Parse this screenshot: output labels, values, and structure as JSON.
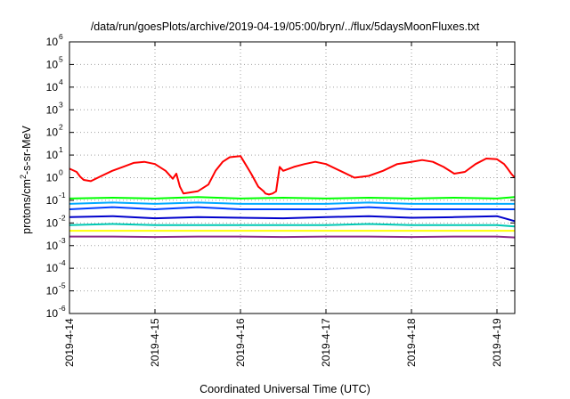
{
  "chart_data": {
    "type": "line",
    "title": "/data/run/goesPlots/archive/2019-04-19/05:00/bryn/../flux/5daysMoonFluxes.txt",
    "xlabel": "Coordinated Universal Time (UTC)",
    "ylabel": {
      "pre": "protons/cm",
      "sup": "2",
      "post": "-s-sr-MeV"
    },
    "yscale": "log",
    "ylim": [
      1e-06,
      1000000.0
    ],
    "y_ticks": [
      {
        "base": "10",
        "exp": "-6"
      },
      {
        "base": "10",
        "exp": "-5"
      },
      {
        "base": "10",
        "exp": "-4"
      },
      {
        "base": "10",
        "exp": "-3"
      },
      {
        "base": "10",
        "exp": "-2"
      },
      {
        "base": "10",
        "exp": "-1"
      },
      {
        "base": "10",
        "exp": "0"
      },
      {
        "base": "10",
        "exp": "1"
      },
      {
        "base": "10",
        "exp": "2"
      },
      {
        "base": "10",
        "exp": "3"
      },
      {
        "base": "10",
        "exp": "4"
      },
      {
        "base": "10",
        "exp": "5"
      },
      {
        "base": "10",
        "exp": "6"
      }
    ],
    "x_ticks": [
      "2019-4-14",
      "2019-4-15",
      "2019-4-16",
      "2019-4-17",
      "2019-4-18",
      "2019-4-19"
    ],
    "xlim": [
      "2019-04-14T00:00",
      "2019-04-19T05:00"
    ],
    "grid": true,
    "legend": "none",
    "series": [
      {
        "color": "#ff0000",
        "x": [
          "2019-04-14T00:00",
          "2019-04-14T02:00",
          "2019-04-14T03:00",
          "2019-04-14T04:00",
          "2019-04-14T06:00",
          "2019-04-14T09:00",
          "2019-04-14T12:00",
          "2019-04-14T15:00",
          "2019-04-14T18:00",
          "2019-04-14T21:00",
          "2019-04-15T00:00",
          "2019-04-15T03:00",
          "2019-04-15T05:00",
          "2019-04-15T06:00",
          "2019-04-15T07:00",
          "2019-04-15T08:00",
          "2019-04-15T12:00",
          "2019-04-15T15:00",
          "2019-04-15T17:00",
          "2019-04-15T19:00",
          "2019-04-15T21:00",
          "2019-04-16T00:00",
          "2019-04-16T01:00",
          "2019-04-16T03:00",
          "2019-04-16T05:00",
          "2019-04-16T06:30",
          "2019-04-16T07:00",
          "2019-04-16T08:00",
          "2019-04-16T09:00",
          "2019-04-16T10:00",
          "2019-04-16T11:00",
          "2019-04-16T12:00",
          "2019-04-16T15:00",
          "2019-04-16T18:00",
          "2019-04-16T21:00",
          "2019-04-17T00:00",
          "2019-04-17T04:00",
          "2019-04-17T08:00",
          "2019-04-17T12:00",
          "2019-04-17T16:00",
          "2019-04-17T20:00",
          "2019-04-18T00:00",
          "2019-04-18T03:00",
          "2019-04-18T06:00",
          "2019-04-18T09:00",
          "2019-04-18T12:00",
          "2019-04-18T15:00",
          "2019-04-18T18:00",
          "2019-04-18T21:00",
          "2019-04-19T00:00",
          "2019-04-19T02:00",
          "2019-04-19T03:00",
          "2019-04-19T04:00",
          "2019-04-19T05:00"
        ],
        "values": [
          2.5,
          1.8,
          1.1,
          0.8,
          0.7,
          1.2,
          2.0,
          3.0,
          4.5,
          5.0,
          4.0,
          2.0,
          0.9,
          1.5,
          0.4,
          0.2,
          0.25,
          0.5,
          2.0,
          5.0,
          8.0,
          9.0,
          5.0,
          1.5,
          0.4,
          0.25,
          0.2,
          0.18,
          0.2,
          0.25,
          3.0,
          2.0,
          3.0,
          4.0,
          5.0,
          4.0,
          2.0,
          1.0,
          1.2,
          2.0,
          4.0,
          5.0,
          6.0,
          5.0,
          3.0,
          1.5,
          1.8,
          4.0,
          7.0,
          6.5,
          4.0,
          2.5,
          1.5,
          1.0
        ]
      },
      {
        "color": "#00ff00",
        "x": [
          "2019-04-14T00:00",
          "2019-04-14T12:00",
          "2019-04-15T00:00",
          "2019-04-15T12:00",
          "2019-04-16T00:00",
          "2019-04-16T12:00",
          "2019-04-17T00:00",
          "2019-04-17T12:00",
          "2019-04-18T00:00",
          "2019-04-18T12:00",
          "2019-04-19T00:00",
          "2019-04-19T05:00"
        ],
        "values": [
          0.12,
          0.13,
          0.12,
          0.14,
          0.12,
          0.13,
          0.12,
          0.13,
          0.12,
          0.13,
          0.12,
          0.14
        ]
      },
      {
        "color": "#00aaff",
        "x": [
          "2019-04-14T00:00",
          "2019-04-14T12:00",
          "2019-04-15T00:00",
          "2019-04-15T12:00",
          "2019-04-16T00:00",
          "2019-04-16T12:00",
          "2019-04-17T00:00",
          "2019-04-17T12:00",
          "2019-04-18T00:00",
          "2019-04-18T12:00",
          "2019-04-19T00:00",
          "2019-04-19T05:00"
        ],
        "values": [
          0.07,
          0.08,
          0.07,
          0.08,
          0.07,
          0.07,
          0.07,
          0.08,
          0.07,
          0.07,
          0.07,
          0.07
        ]
      },
      {
        "color": "#0040ff",
        "x": [
          "2019-04-14T00:00",
          "2019-04-14T12:00",
          "2019-04-15T00:00",
          "2019-04-15T12:00",
          "2019-04-16T00:00",
          "2019-04-16T12:00",
          "2019-04-17T00:00",
          "2019-04-17T12:00",
          "2019-04-18T00:00",
          "2019-04-18T12:00",
          "2019-04-19T00:00",
          "2019-04-19T05:00"
        ],
        "values": [
          0.04,
          0.05,
          0.04,
          0.05,
          0.04,
          0.04,
          0.04,
          0.05,
          0.04,
          0.04,
          0.04,
          0.04
        ]
      },
      {
        "color": "#0000cc",
        "x": [
          "2019-04-14T00:00",
          "2019-04-14T12:00",
          "2019-04-15T00:00",
          "2019-04-15T12:00",
          "2019-04-16T00:00",
          "2019-04-16T12:00",
          "2019-04-17T00:00",
          "2019-04-17T12:00",
          "2019-04-18T00:00",
          "2019-04-18T12:00",
          "2019-04-19T00:00",
          "2019-04-19T05:00"
        ],
        "values": [
          0.018,
          0.02,
          0.016,
          0.018,
          0.017,
          0.016,
          0.018,
          0.02,
          0.017,
          0.018,
          0.02,
          0.012
        ]
      },
      {
        "color": "#00c8b4",
        "x": [
          "2019-04-14T00:00",
          "2019-04-14T12:00",
          "2019-04-15T00:00",
          "2019-04-15T12:00",
          "2019-04-16T00:00",
          "2019-04-16T12:00",
          "2019-04-17T00:00",
          "2019-04-17T12:00",
          "2019-04-18T00:00",
          "2019-04-18T12:00",
          "2019-04-19T00:00",
          "2019-04-19T05:00"
        ],
        "values": [
          0.008,
          0.009,
          0.008,
          0.008,
          0.008,
          0.008,
          0.008,
          0.009,
          0.008,
          0.008,
          0.008,
          0.007
        ]
      },
      {
        "color": "#ffff00",
        "x": [
          "2019-04-14T00:00",
          "2019-04-14T12:00",
          "2019-04-15T00:00",
          "2019-04-15T12:00",
          "2019-04-16T00:00",
          "2019-04-16T12:00",
          "2019-04-17T00:00",
          "2019-04-17T12:00",
          "2019-04-18T00:00",
          "2019-04-18T12:00",
          "2019-04-19T00:00",
          "2019-04-19T05:00"
        ],
        "values": [
          0.0045,
          0.0045,
          0.0045,
          0.0045,
          0.0045,
          0.0045,
          0.0045,
          0.0045,
          0.0045,
          0.0045,
          0.0045,
          0.0045
        ]
      },
      {
        "color": "#8b2a8b",
        "x": [
          "2019-04-14T00:00",
          "2019-04-14T12:00",
          "2019-04-15T00:00",
          "2019-04-15T12:00",
          "2019-04-16T00:00",
          "2019-04-16T12:00",
          "2019-04-17T00:00",
          "2019-04-17T12:00",
          "2019-04-18T00:00",
          "2019-04-18T12:00",
          "2019-04-19T00:00",
          "2019-04-19T05:00"
        ],
        "values": [
          0.0025,
          0.0025,
          0.0024,
          0.0025,
          0.0025,
          0.0024,
          0.0025,
          0.0025,
          0.0024,
          0.0025,
          0.0025,
          0.0023
        ]
      }
    ]
  }
}
